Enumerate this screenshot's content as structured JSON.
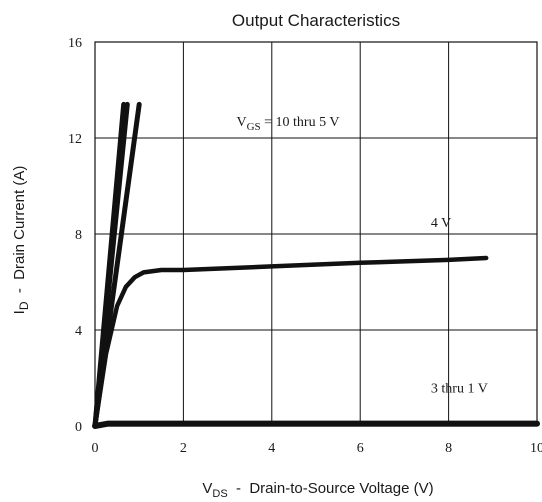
{
  "chart_data": {
    "type": "line",
    "title": "Output Characteristics",
    "xlabel": {
      "main": "V",
      "sub": "DS",
      "rest": "  -  Drain-to-Source Voltage (V)"
    },
    "ylabel": {
      "main": "I",
      "sub": "D",
      "rest": "  -  Drain Current (A)"
    },
    "xlim": [
      0,
      10
    ],
    "ylim": [
      0,
      16
    ],
    "xticks": [
      "0",
      "2",
      "4",
      "6",
      "8",
      "10"
    ],
    "yticks": [
      "0",
      "4",
      "8",
      "12",
      "16"
    ],
    "grid": true,
    "series": [
      {
        "name": "10 thru 5 V",
        "x": [
          0,
          0.65
        ],
        "y": [
          0,
          13.4
        ]
      },
      {
        "name": "10 thru 5 V",
        "x": [
          0,
          0.73
        ],
        "y": [
          0,
          13.4
        ]
      },
      {
        "name": "10 thru 5 V",
        "x": [
          0,
          1.0
        ],
        "y": [
          0,
          13.4
        ]
      },
      {
        "name": "4 V",
        "x": [
          0,
          0.25,
          0.5,
          0.7,
          0.9,
          1.1,
          1.5,
          2,
          4,
          6,
          8,
          8.85
        ],
        "y": [
          0,
          3.0,
          5.0,
          5.8,
          6.2,
          6.4,
          6.5,
          6.5,
          6.65,
          6.8,
          6.92,
          7.0
        ]
      },
      {
        "name": "3 thru 1 V",
        "x": [
          0,
          0.3,
          1,
          10
        ],
        "y": [
          0,
          0.1,
          0.1,
          0.1
        ]
      }
    ],
    "annotations": [
      {
        "text_main": "V",
        "text_sub": "GS",
        "text_rest": " = 10 thru 5 V",
        "x": 3.2,
        "y": 12.5
      },
      {
        "text": "4 V",
        "x": 7.6,
        "y": 8.3
      },
      {
        "text": "3 thru 1 V",
        "x": 7.6,
        "y": 1.4
      }
    ]
  }
}
